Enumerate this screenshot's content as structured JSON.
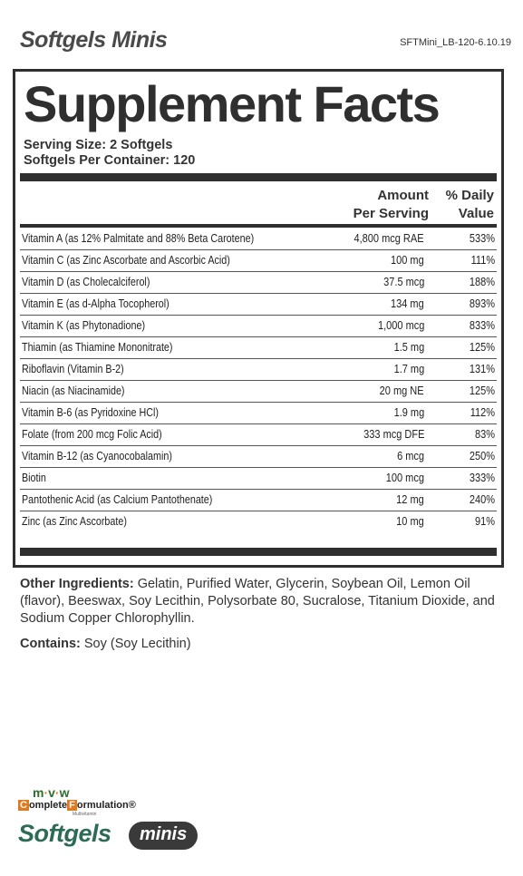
{
  "header": {
    "product_title": "Softgels Minis",
    "label_code": "SFTMini_LB-120-6.10.19"
  },
  "facts": {
    "title": "Supplement Facts",
    "serving_size": "Serving Size: 2 Softgels",
    "servings_per_container": "Softgels Per Container: 120",
    "col_amount_line1": "Amount",
    "col_amount_line2": "Per Serving",
    "col_dv_line1": "% Daily",
    "col_dv_line2": "Value",
    "rows": [
      {
        "nutrient": "Vitamin A (as 12% Palmitate and 88% Beta Carotene)",
        "amount": "4,800 mcg RAE",
        "dv": "533%"
      },
      {
        "nutrient": "Vitamin C (as Zinc Ascorbate and Ascorbic Acid)",
        "amount": "100 mg",
        "dv": "111%"
      },
      {
        "nutrient": "Vitamin D (as Cholecalciferol)",
        "amount": "37.5 mcg",
        "dv": "188%"
      },
      {
        "nutrient": "Vitamin E (as d-Alpha Tocopherol)",
        "amount": "134 mg",
        "dv": "893%"
      },
      {
        "nutrient": "Vitamin K (as Phytonadione)",
        "amount": "1,000 mcg",
        "dv": "833%"
      },
      {
        "nutrient": "Thiamin (as Thiamine Mononitrate)",
        "amount": "1.5 mg",
        "dv": "125%"
      },
      {
        "nutrient": "Riboflavin (Vitamin B-2)",
        "amount": "1.7 mg",
        "dv": "131%"
      },
      {
        "nutrient": "Niacin (as Niacinamide)",
        "amount": "20 mg NE",
        "dv": "125%"
      },
      {
        "nutrient": "Vitamin B-6 (as Pyridoxine HCl)",
        "amount": "1.9 mg",
        "dv": "112%"
      },
      {
        "nutrient": "Folate (from 200 mcg Folic Acid)",
        "amount": "333 mcg DFE",
        "dv": "83%"
      },
      {
        "nutrient": "Vitamin B-12 (as Cyanocobalamin)",
        "amount": "6 mcg",
        "dv": "250%"
      },
      {
        "nutrient": "Biotin",
        "amount": "100 mcg",
        "dv": "333%"
      },
      {
        "nutrient": "Pantothenic Acid (as Calcium Pantothenate)",
        "amount": "12 mg",
        "dv": "240%"
      },
      {
        "nutrient": "Zinc (as Zinc Ascorbate)",
        "amount": "10 mg",
        "dv": "91%"
      }
    ]
  },
  "ingredients": {
    "other_label": "Other Ingredients:",
    "other_text": " Gelatin, Purified Water, Glycerin, Soybean Oil, Lemon Oil (flavor), Beeswax, Soy Lecithin, Polysorbate 80, Sucralose, Titanium Dioxide, and Sodium Copper Chlorophyllin.",
    "contains_label": "Contains:",
    "contains_text": " Soy (Soy Lecithin)"
  },
  "logo": {
    "mvw_m": "m",
    "mvw_v": "v",
    "mvw_w": "w",
    "complete_c": "C",
    "complete_rest": "omplete",
    "formulation_f": "F",
    "formulation_rest": "ormulation",
    "sub": "Multivitamin",
    "brand": "Softgels",
    "pill": "minis"
  },
  "colors": {
    "brand_green": "#2e6b57",
    "accent_orange": "#e07a1f",
    "rule_dark": "#2f2f2f"
  }
}
